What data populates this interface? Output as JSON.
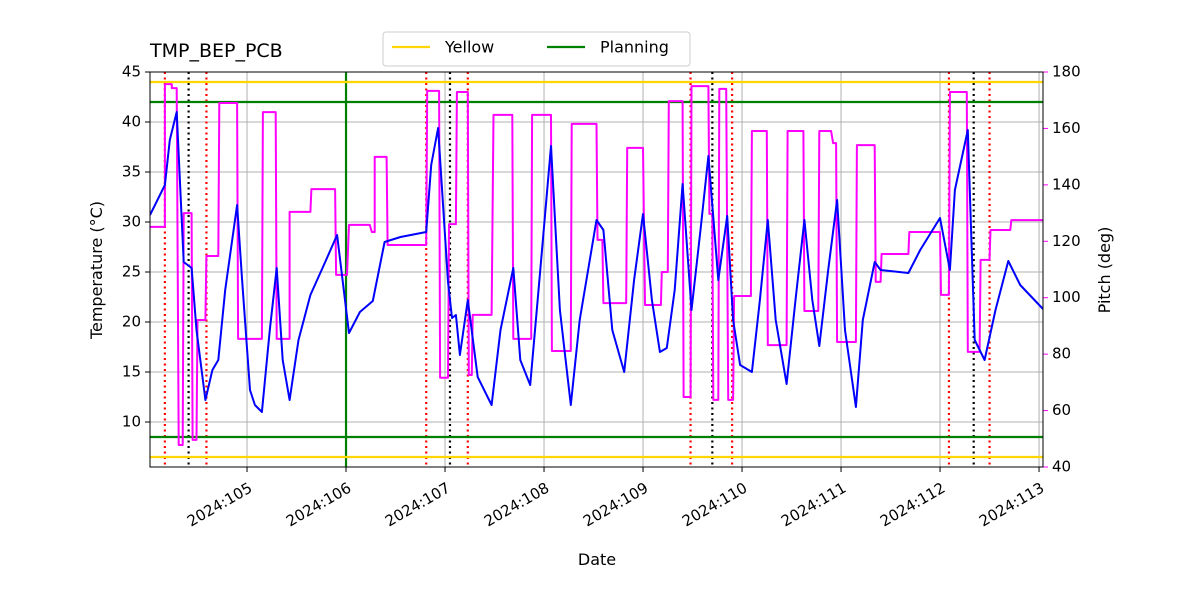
{
  "chart_data": {
    "type": "line",
    "title": "TMP_BEP_PCB",
    "xlabel": "Date",
    "ylabel": "Temperature (°C)",
    "y2label": "Pitch (deg)",
    "y2color": "magenta",
    "grid": true,
    "legend": "top",
    "xlim": [
      104.02,
      113.04
    ],
    "xticks": [
      {
        "value": 105,
        "label": "2024:105"
      },
      {
        "value": 106,
        "label": "2024:106"
      },
      {
        "value": 107,
        "label": "2024:107"
      },
      {
        "value": 108,
        "label": "2024:108"
      },
      {
        "value": 109,
        "label": "2024:109"
      },
      {
        "value": 110,
        "label": "2024:110"
      },
      {
        "value": 111,
        "label": "2024:111"
      },
      {
        "value": 112,
        "label": "2024:112"
      },
      {
        "value": 113,
        "label": "2024:113"
      }
    ],
    "ylim": [
      5.5,
      45
    ],
    "yticks": [
      10,
      15,
      20,
      25,
      30,
      35,
      40,
      45
    ],
    "y2lim": [
      40,
      180
    ],
    "y2ticks": [
      40,
      60,
      80,
      100,
      120,
      140,
      160,
      180
    ],
    "hlines": [
      {
        "name": "Yellow",
        "color": "gold",
        "values": [
          44,
          6.5
        ]
      },
      {
        "name": "Planning",
        "color": "green",
        "values": [
          42,
          8.5
        ]
      }
    ],
    "vlines": [
      {
        "color": "green",
        "style": "solid",
        "x": [
          106.0
        ]
      },
      {
        "color": "red",
        "style": "dotted",
        "x": [
          104.17,
          104.59,
          106.81,
          107.23,
          109.48,
          109.9,
          112.09,
          112.5
        ]
      },
      {
        "color": "black",
        "style": "dotted",
        "x": [
          104.41,
          107.05,
          109.7,
          112.34
        ]
      }
    ],
    "series": [
      {
        "color": "blue",
        "axis": "y",
        "x": [
          104.02,
          104.17,
          104.22,
          104.29,
          104.36,
          104.44,
          104.49,
          104.58,
          104.65,
          104.71,
          104.78,
          104.9,
          104.95,
          105.03,
          105.08,
          105.15,
          105.23,
          105.3,
          105.36,
          105.43,
          105.52,
          105.64,
          105.79,
          105.91,
          106.03,
          106.14,
          106.27,
          106.39,
          106.55,
          106.81,
          106.86,
          106.93,
          107.03,
          107.07,
          107.11,
          107.15,
          107.23,
          107.33,
          107.47,
          107.56,
          107.69,
          107.76,
          107.86,
          107.96,
          108.07,
          108.16,
          108.27,
          108.36,
          108.53,
          108.6,
          108.69,
          108.81,
          108.91,
          109.0,
          109.09,
          109.17,
          109.24,
          109.32,
          109.4,
          109.49,
          109.58,
          109.66,
          109.76,
          109.85,
          109.91,
          109.98,
          110.1,
          110.18,
          110.26,
          110.34,
          110.45,
          110.54,
          110.63,
          110.71,
          110.78,
          110.87,
          110.96,
          111.04,
          111.15,
          111.22,
          111.34,
          111.4,
          111.68,
          111.8,
          112.0,
          112.1,
          112.15,
          112.28,
          112.35,
          112.45,
          112.56,
          112.69,
          112.81,
          113.04
        ],
        "values": [
          30.7,
          33.7,
          38.2,
          41.0,
          26.0,
          25.4,
          19.2,
          12.2,
          15.2,
          16.2,
          23.2,
          31.7,
          24.2,
          13.2,
          11.7,
          11.0,
          19.2,
          25.4,
          16.2,
          12.2,
          18.2,
          22.7,
          26.0,
          28.7,
          18.9,
          21.0,
          22.1,
          28.0,
          28.5,
          29.0,
          35.7,
          39.4,
          24.0,
          20.4,
          20.7,
          16.7,
          22.2,
          14.5,
          11.7,
          19.2,
          25.4,
          16.2,
          13.7,
          25.0,
          37.6,
          21.2,
          11.7,
          20.2,
          30.2,
          29.2,
          19.2,
          15.0,
          24.2,
          30.8,
          22.2,
          17.0,
          17.4,
          23.2,
          33.8,
          21.2,
          29.2,
          36.6,
          24.2,
          30.6,
          20.2,
          15.7,
          15.0,
          22.2,
          30.2,
          20.2,
          13.8,
          22.2,
          30.2,
          22.2,
          17.6,
          25.2,
          32.2,
          19.2,
          11.5,
          20.2,
          26.0,
          25.2,
          24.9,
          27.2,
          30.4,
          25.2,
          33.2,
          39.2,
          18.2,
          16.2,
          21.2,
          26.1,
          23.7,
          21.3
        ]
      },
      {
        "color": "magenta",
        "axis": "y2",
        "x": [
          104.02,
          104.17,
          104.17,
          104.24,
          104.24,
          104.29,
          104.31,
          104.35,
          104.36,
          104.44,
          104.45,
          104.49,
          104.5,
          104.58,
          104.59,
          104.71,
          104.72,
          104.9,
          104.91,
          105.15,
          105.16,
          105.29,
          105.3,
          105.43,
          105.43,
          105.64,
          105.65,
          105.89,
          105.9,
          106.01,
          106.03,
          106.24,
          106.26,
          106.29,
          106.29,
          106.41,
          106.42,
          106.81,
          106.82,
          106.94,
          106.95,
          107.03,
          107.04,
          107.11,
          107.12,
          107.23,
          107.24,
          107.27,
          107.28,
          107.47,
          107.49,
          107.68,
          107.69,
          107.87,
          107.88,
          108.07,
          108.08,
          108.27,
          108.28,
          108.53,
          108.54,
          108.59,
          108.6,
          108.83,
          108.84,
          109.0,
          109.02,
          109.18,
          109.19,
          109.25,
          109.26,
          109.4,
          109.41,
          109.48,
          109.49,
          109.66,
          109.67,
          109.7,
          109.71,
          109.76,
          109.77,
          109.84,
          109.86,
          109.91,
          109.92,
          110.09,
          110.1,
          110.25,
          110.26,
          110.45,
          110.46,
          110.62,
          110.63,
          110.77,
          110.78,
          110.9,
          110.92,
          110.95,
          110.96,
          111.15,
          111.16,
          111.34,
          111.35,
          111.4,
          111.41,
          111.68,
          111.69,
          112.0,
          112.01,
          112.09,
          112.1,
          112.27,
          112.28,
          112.4,
          112.41,
          112.5,
          112.51,
          112.71,
          112.72,
          113.04
        ],
        "values": [
          125.1,
          125.1,
          175.7,
          175.7,
          174.3,
          174.3,
          47.8,
          47.8,
          130,
          130,
          49.6,
          49.6,
          92.1,
          92.1,
          114.8,
          114.8,
          169,
          169,
          85.4,
          85.4,
          165.8,
          165.8,
          85.4,
          85.4,
          130.4,
          130.4,
          138.5,
          138.5,
          108.1,
          108.1,
          125.8,
          125.8,
          123.3,
          123.3,
          149.9,
          149.9,
          118.7,
          118.7,
          173.3,
          173.3,
          71.6,
          71.6,
          126.1,
          126.1,
          172.9,
          172.9,
          72.6,
          72.6,
          93.9,
          93.9,
          164.8,
          164.8,
          85.4,
          85.4,
          164.8,
          164.8,
          81.1,
          81.1,
          161.6,
          161.6,
          120.5,
          120.5,
          98.1,
          98.1,
          153.1,
          153.1,
          97.4,
          97.4,
          109.1,
          109.1,
          169.7,
          169.7,
          64.8,
          64.8,
          175,
          175,
          129.7,
          129.7,
          63.8,
          63.8,
          174,
          174,
          63.8,
          63.8,
          100.6,
          100.6,
          159.1,
          159.1,
          83.2,
          83.2,
          159.1,
          159.1,
          95.3,
          95.3,
          159.1,
          159.1,
          154.8,
          154.8,
          84.3,
          84.3,
          154.1,
          154.1,
          105.6,
          105.6,
          115.5,
          115.5,
          123.3,
          123.3,
          101,
          101,
          172.9,
          172.9,
          80.8,
          80.8,
          113.4,
          113.4,
          124,
          124,
          127.5,
          127.5
        ]
      }
    ]
  }
}
